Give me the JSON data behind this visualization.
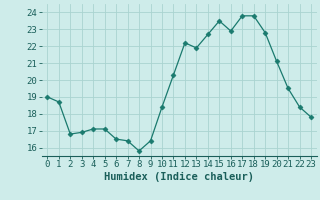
{
  "x": [
    0,
    1,
    2,
    3,
    4,
    5,
    6,
    7,
    8,
    9,
    10,
    11,
    12,
    13,
    14,
    15,
    16,
    17,
    18,
    19,
    20,
    21,
    22,
    23
  ],
  "y": [
    19.0,
    18.7,
    16.8,
    16.9,
    17.1,
    17.1,
    16.5,
    16.4,
    15.8,
    16.4,
    18.4,
    20.3,
    22.2,
    21.9,
    22.7,
    23.5,
    22.9,
    23.8,
    23.8,
    22.8,
    21.1,
    19.5,
    18.4,
    17.8
  ],
  "line_color": "#1a7a6e",
  "marker": "D",
  "marker_size": 2.5,
  "bg_color": "#ceecea",
  "grid_color": "#aad4d0",
  "xlabel": "Humidex (Indice chaleur)",
  "ylim": [
    15.5,
    24.5
  ],
  "xlim": [
    -0.5,
    23.5
  ],
  "yticks": [
    16,
    17,
    18,
    19,
    20,
    21,
    22,
    23,
    24
  ],
  "xticks": [
    0,
    1,
    2,
    3,
    4,
    5,
    6,
    7,
    8,
    9,
    10,
    11,
    12,
    13,
    14,
    15,
    16,
    17,
    18,
    19,
    20,
    21,
    22,
    23
  ],
  "tick_color": "#1a5f5a",
  "label_color": "#1a5f5a",
  "font_size": 6.5,
  "xlabel_fontsize": 7.5
}
